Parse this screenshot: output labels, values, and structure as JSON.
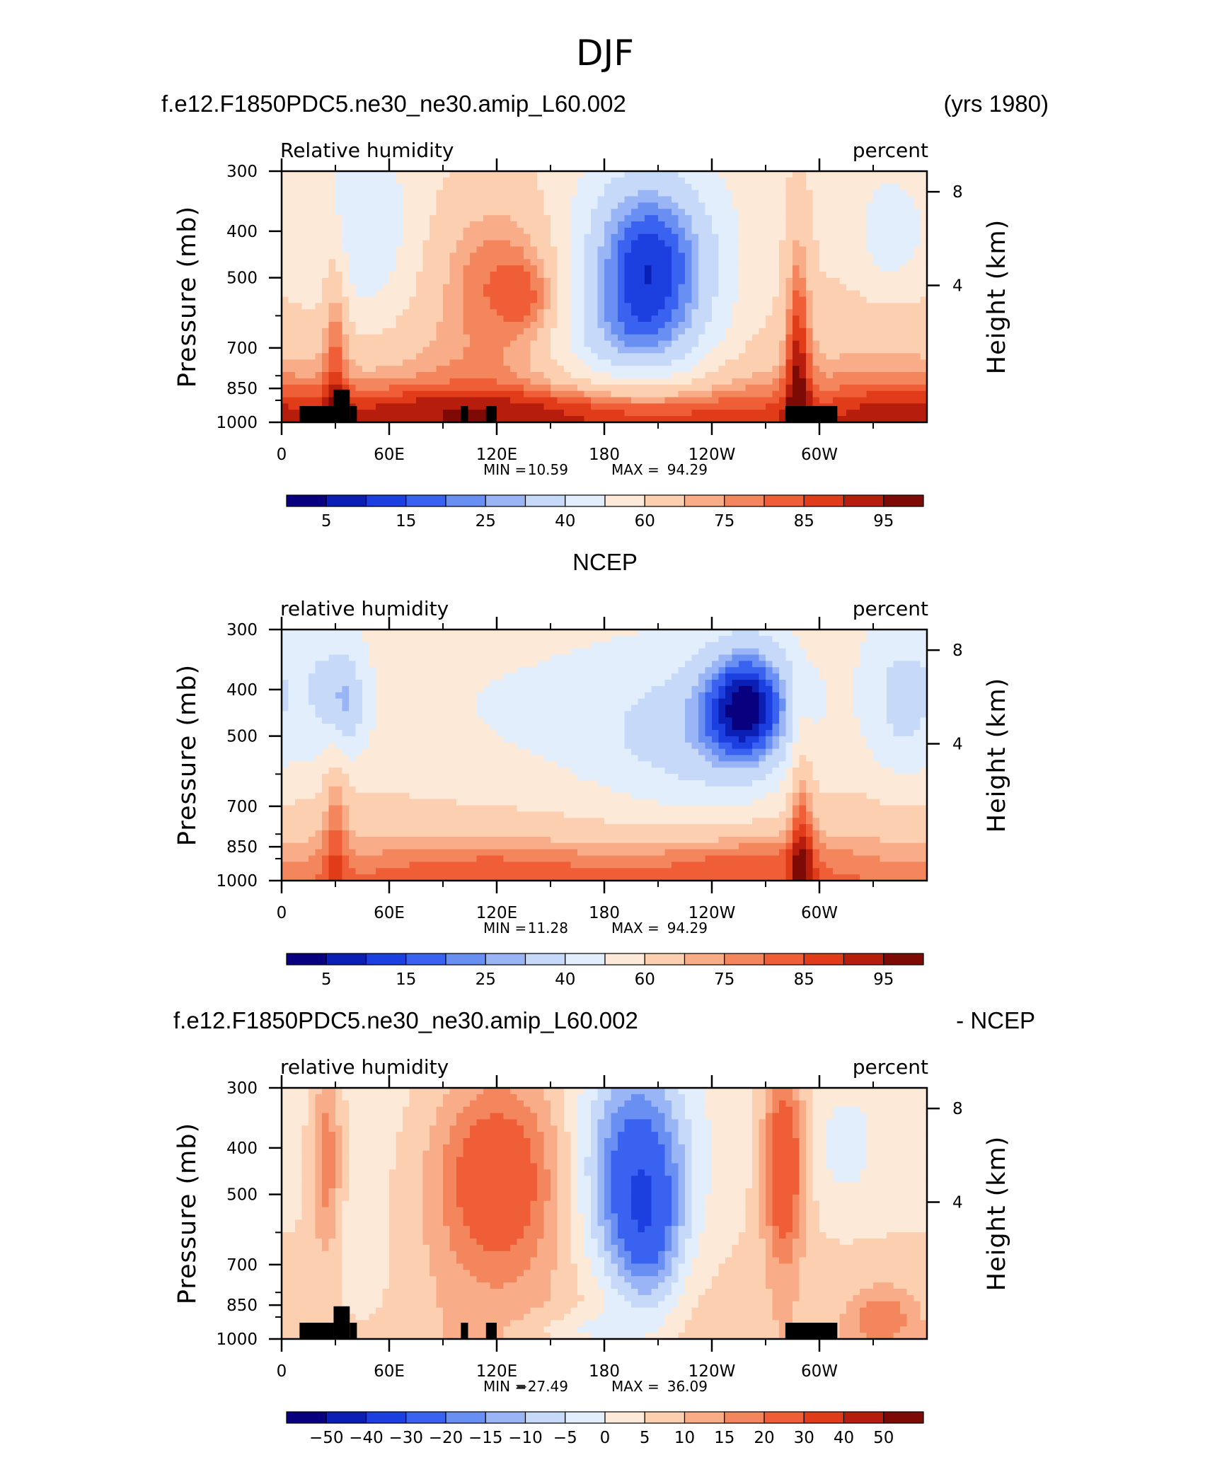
{
  "suptitle": "DJF",
  "colors": {
    "rh_levels": [
      "#08007f",
      "#0b1fb5",
      "#1c3fe0",
      "#3a62f0",
      "#6a8ff3",
      "#9ab5f5",
      "#c6d9f8",
      "#e2eefb",
      "#fde9d7",
      "#fbcfb0",
      "#f8ad88",
      "#f4865e",
      "#ef5e36",
      "#e03c1a",
      "#b71d0c",
      "#7d0a05"
    ],
    "diff_levels": [
      "#08007f",
      "#0b1fb5",
      "#1c3fe0",
      "#3a62f0",
      "#6a8ff3",
      "#9ab5f5",
      "#c6d9f8",
      "#e2eefb",
      "#fde9d7",
      "#fbcfb0",
      "#f8ad88",
      "#f4865e",
      "#ef5e36",
      "#e03c1a",
      "#b71d0c",
      "#7d0a05"
    ],
    "terrain": "#000000"
  },
  "chart_data": [
    {
      "type": "heatmap",
      "panel_title_left": "f.e12.F1850PDC5.ne30_ne30.amip_L60.002",
      "panel_title_right": "(yrs 1980)",
      "variable": "Relative humidity",
      "units": "percent",
      "ylabel": "Pressure (mb)",
      "ylabel_right": "Height (km)",
      "x_ticks": [
        "0",
        "60E",
        "120E",
        "180",
        "120W",
        "60W"
      ],
      "y_ticks": [
        "300",
        "400",
        "500",
        "700",
        "850",
        "1000"
      ],
      "y_ticks_right": [
        "8",
        "4"
      ],
      "min_label": "MIN =",
      "min_value": "10.59",
      "max_label": "MAX =",
      "max_value": "94.29",
      "colorbar_labels": [
        "5",
        "15",
        "25",
        "40",
        "60",
        "75",
        "85",
        "95"
      ],
      "levels": [
        5,
        10,
        15,
        20,
        25,
        30,
        40,
        50,
        60,
        70,
        75,
        80,
        85,
        90,
        95
      ],
      "features": [
        {
          "lon": 80,
          "plev": 450,
          "value": 58
        },
        {
          "lon": 110,
          "plev": 550,
          "value": 78
        },
        {
          "lon": 140,
          "plev": 580,
          "value": 80
        },
        {
          "lon": 205,
          "plev": 470,
          "value": 13
        },
        {
          "lon": 190,
          "plev": 380,
          "value": 18
        },
        {
          "lon": 215,
          "plev": 650,
          "value": 38
        },
        {
          "lon": 290,
          "plev": 720,
          "value": 88
        },
        {
          "lon": 330,
          "plev": 420,
          "value": 38
        },
        {
          "lon": 340,
          "plev": 580,
          "value": 62
        },
        {
          "lon": 40,
          "plev": 360,
          "value": 45
        },
        {
          "lon": 180,
          "plev": 930,
          "value": 89
        },
        {
          "lon": 60,
          "plev": 930,
          "value": 88
        }
      ]
    },
    {
      "type": "heatmap",
      "panel_title_center": "NCEP",
      "variable": "relative humidity",
      "units": "percent",
      "ylabel": "Pressure (mb)",
      "ylabel_right": "Height (km)",
      "x_ticks": [
        "0",
        "60E",
        "120E",
        "180",
        "120W",
        "60W"
      ],
      "y_ticks": [
        "300",
        "400",
        "500",
        "700",
        "850",
        "1000"
      ],
      "y_ticks_right": [
        "8",
        "4"
      ],
      "min_label": "MIN =",
      "min_value": "11.28",
      "max_label": "MAX =",
      "max_value": "94.29",
      "colorbar_labels": [
        "5",
        "15",
        "25",
        "40",
        "60",
        "75",
        "85",
        "95"
      ],
      "levels": [
        5,
        10,
        15,
        20,
        25,
        30,
        40,
        50,
        60,
        70,
        75,
        80,
        85,
        90,
        95
      ],
      "features": [
        {
          "lon": 260,
          "plev": 420,
          "value": 15
        },
        {
          "lon": 250,
          "plev": 520,
          "value": 30
        },
        {
          "lon": 220,
          "plev": 500,
          "value": 45
        },
        {
          "lon": 100,
          "plev": 500,
          "value": 55
        },
        {
          "lon": 35,
          "plev": 420,
          "value": 40
        },
        {
          "lon": 345,
          "plev": 420,
          "value": 38
        },
        {
          "lon": 290,
          "plev": 800,
          "value": 85
        },
        {
          "lon": 120,
          "plev": 930,
          "value": 80
        },
        {
          "lon": 250,
          "plev": 900,
          "value": 80
        }
      ]
    },
    {
      "type": "heatmap",
      "panel_title_left": "f.e12.F1850PDC5.ne30_ne30.amip_L60.002",
      "panel_title_right": "- NCEP",
      "variable": "relative humidity",
      "units": "percent",
      "ylabel": "Pressure (mb)",
      "ylabel_right": "Height (km)",
      "x_ticks": [
        "0",
        "60E",
        "120E",
        "180",
        "120W",
        "60W"
      ],
      "y_ticks": [
        "300",
        "400",
        "500",
        "700",
        "850",
        "1000"
      ],
      "y_ticks_right": [
        "8",
        "4"
      ],
      "min_label": "MIN =",
      "min_value": "−27.49",
      "max_label": "MAX =",
      "max_value": "36.09",
      "colorbar_labels": [
        "−50",
        "−40",
        "−30",
        "−20",
        "−15",
        "−10",
        "−5",
        "0",
        "5",
        "10",
        "15",
        "20",
        "30",
        "40",
        "50"
      ],
      "levels": [
        -50,
        -40,
        -30,
        -20,
        -15,
        -10,
        -5,
        0,
        5,
        10,
        15,
        20,
        30,
        40,
        50
      ],
      "features": [
        {
          "lon": 100,
          "plev": 420,
          "value": 28
        },
        {
          "lon": 140,
          "plev": 500,
          "value": 22
        },
        {
          "lon": 200,
          "plev": 450,
          "value": -25
        },
        {
          "lon": 190,
          "plev": 340,
          "value": -18
        },
        {
          "lon": 210,
          "plev": 650,
          "value": -12
        },
        {
          "lon": 280,
          "plev": 420,
          "value": 25
        },
        {
          "lon": 25,
          "plev": 400,
          "value": 15
        },
        {
          "lon": 340,
          "plev": 900,
          "value": 15
        },
        {
          "lon": 180,
          "plev": 950,
          "value": 5
        }
      ]
    }
  ],
  "terrain_blocks": [
    {
      "lon0": 10,
      "lon1": 29,
      "plev_top": 925
    },
    {
      "lon0": 29,
      "lon1": 38,
      "plev_top": 855
    },
    {
      "lon0": 38,
      "lon1": 42,
      "plev_top": 925
    },
    {
      "lon0": 100,
      "lon1": 104,
      "plev_top": 925
    },
    {
      "lon0": 114,
      "lon1": 120,
      "plev_top": 925
    },
    {
      "lon0": 281,
      "lon1": 310,
      "plev_top": 925
    }
  ]
}
